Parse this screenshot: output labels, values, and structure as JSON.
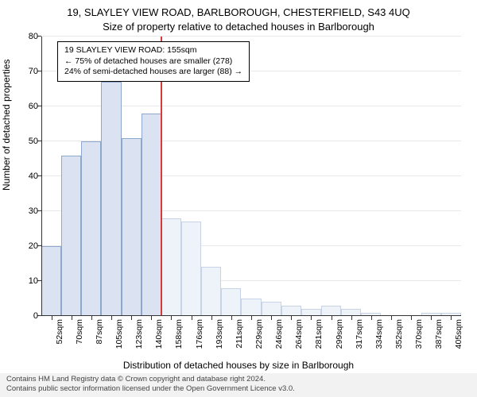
{
  "title_line1": "19, SLAYLEY VIEW ROAD, BARLBOROUGH, CHESTERFIELD, S43 4UQ",
  "title_line2": "Size of property relative to detached houses in Barlborough",
  "y_axis_label": "Number of detached properties",
  "x_axis_label": "Distribution of detached houses by size in Barlborough",
  "footer_line1": "Contains HM Land Registry data © Crown copyright and database right 2024.",
  "footer_line2": "Contains public sector information licensed under the Open Government Licence v3.0.",
  "chart": {
    "type": "histogram",
    "ylim": [
      0,
      80
    ],
    "ytick_step": 10,
    "background_color": "#ffffff",
    "grid_color": "#e8e8ec",
    "axis_color": "#333333",
    "categories": [
      "52sqm",
      "70sqm",
      "87sqm",
      "105sqm",
      "123sqm",
      "140sqm",
      "158sqm",
      "176sqm",
      "193sqm",
      "211sqm",
      "229sqm",
      "246sqm",
      "264sqm",
      "281sqm",
      "299sqm",
      "317sqm",
      "334sqm",
      "352sqm",
      "370sqm",
      "387sqm",
      "405sqm"
    ],
    "values": [
      20,
      46,
      50,
      67,
      51,
      58,
      28,
      27,
      14,
      8,
      5,
      4,
      3,
      2,
      3,
      2,
      1,
      0,
      0,
      1,
      1
    ],
    "bar_left_color": "#dbe3f2",
    "bar_left_border": "#8ea7cc",
    "bar_right_color": "#eef2f9",
    "bar_right_border": "#c8d3e6",
    "reference_index": 5,
    "reference_line_color": "#d83a3a",
    "title_fontsize": 13,
    "label_fontsize": 12,
    "tick_fontsize": 11
  },
  "annotation": {
    "line1": "19 SLAYLEY VIEW ROAD: 155sqm",
    "line2": "← 75% of detached houses are smaller (278)",
    "line3": "24% of semi-detached houses are larger (88) →",
    "border_color": "#000000",
    "background_color": "#ffffff"
  }
}
